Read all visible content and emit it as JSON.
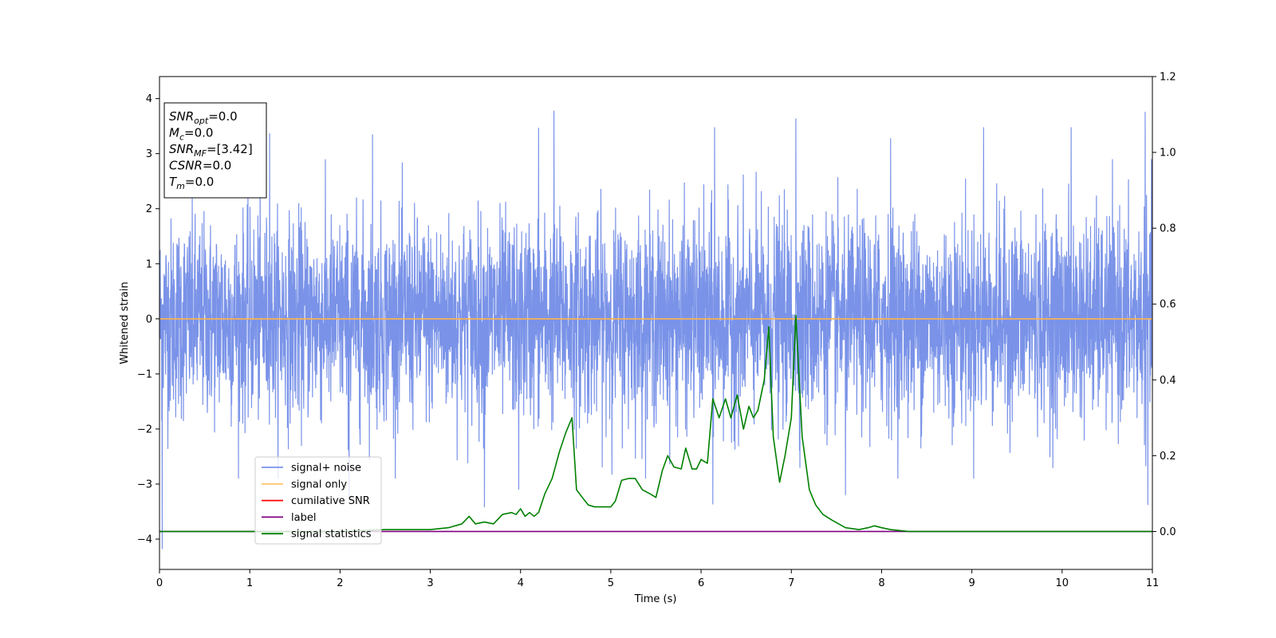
{
  "chart_data": {
    "type": "line",
    "xlabel": "Time (s)",
    "ylabel": "Whitened strain",
    "xlim": [
      0,
      11
    ],
    "ylim": [
      -4.55,
      4.4
    ],
    "y2lim": [
      -0.1,
      1.2
    ],
    "x_ticks": [
      "0",
      "1",
      "2",
      "3",
      "4",
      "5",
      "6",
      "7",
      "8",
      "9",
      "10",
      "11"
    ],
    "y_ticks": [
      "4",
      "3",
      "2",
      "1",
      "0",
      "−1",
      "−2",
      "−3",
      "−4"
    ],
    "y2_ticks": [
      "1.2",
      "1.0",
      "0.8",
      "0.6",
      "0.4",
      "0.2",
      "0.0"
    ],
    "grid": false,
    "legend_position": "lower-left",
    "info_box": [
      {
        "main": "SNR",
        "sub": "opt",
        "value": "=0.0"
      },
      {
        "main": "M",
        "sub": "c",
        "value": "=0.0"
      },
      {
        "main": "SNR",
        "sub": "MF",
        "value": "=[3.42]"
      },
      {
        "main": "CSNR",
        "sub": "",
        "value": "=0.0"
      },
      {
        "main": "T",
        "sub": "m",
        "value": "=0.0"
      }
    ],
    "series": [
      {
        "name": "signal+ noise",
        "color": "#6b87e6",
        "axis": "left",
        "style": "noise",
        "std": 0.9,
        "x_range": [
          0,
          11
        ],
        "peaks": [
          {
            "x": 4.37,
            "y": 3.78
          },
          {
            "x": 10.92,
            "y": 3.76
          },
          {
            "x": 7.05,
            "y": 3.64
          },
          {
            "x": 1.22,
            "y": 3.37
          },
          {
            "x": 2.36,
            "y": 3.35
          },
          {
            "x": 4.2,
            "y": 3.47
          },
          {
            "x": 6.15,
            "y": 3.48
          },
          {
            "x": 9.13,
            "y": 3.48
          },
          {
            "x": 10.1,
            "y": 3.48
          },
          {
            "x": 8.1,
            "y": 3.28
          },
          {
            "x": 0.03,
            "y": -4.18
          },
          {
            "x": 3.6,
            "y": -3.42
          },
          {
            "x": 6.13,
            "y": -3.37
          },
          {
            "x": 10.95,
            "y": -3.38
          },
          {
            "x": 2.1,
            "y": -3.25
          },
          {
            "x": 7.6,
            "y": -3.2
          },
          {
            "x": 3.98,
            "y": -3.1
          }
        ]
      },
      {
        "name": "signal only",
        "color": "#ffb347",
        "axis": "left",
        "x": [
          0,
          11
        ],
        "y": [
          0,
          0
        ]
      },
      {
        "name": "cumilative SNR",
        "color": "#ff0000",
        "axis": "right",
        "x": [],
        "y": []
      },
      {
        "name": "label",
        "color": "#800080",
        "axis": "right",
        "x": [
          0,
          11
        ],
        "y": [
          0,
          0
        ]
      },
      {
        "name": "signal statistics",
        "color": "#008000",
        "axis": "right",
        "x": [
          0,
          0.5,
          1,
          1.5,
          2,
          2.5,
          3,
          3.2,
          3.35,
          3.43,
          3.5,
          3.6,
          3.7,
          3.8,
          3.9,
          3.95,
          4.0,
          4.05,
          4.1,
          4.15,
          4.2,
          4.27,
          4.35,
          4.43,
          4.5,
          4.57,
          4.62,
          4.7,
          4.75,
          4.82,
          4.9,
          5.0,
          5.05,
          5.12,
          5.2,
          5.27,
          5.35,
          5.43,
          5.5,
          5.57,
          5.63,
          5.7,
          5.78,
          5.83,
          5.9,
          5.95,
          6.0,
          6.07,
          6.13,
          6.2,
          6.27,
          6.33,
          6.4,
          6.47,
          6.53,
          6.58,
          6.63,
          6.7,
          6.75,
          6.8,
          6.87,
          6.93,
          7.0,
          7.05,
          7.12,
          7.2,
          7.27,
          7.35,
          7.45,
          7.6,
          7.75,
          7.85,
          7.92,
          8.0,
          8.1,
          8.3,
          8.6,
          9.0,
          9.5,
          10.0,
          10.5,
          11.0
        ],
        "y": [
          0.0,
          0.0,
          0.0,
          0.0,
          0.0,
          0.005,
          0.005,
          0.01,
          0.02,
          0.04,
          0.02,
          0.025,
          0.02,
          0.045,
          0.05,
          0.045,
          0.06,
          0.04,
          0.05,
          0.04,
          0.05,
          0.1,
          0.14,
          0.21,
          0.26,
          0.3,
          0.11,
          0.085,
          0.07,
          0.065,
          0.065,
          0.065,
          0.08,
          0.135,
          0.14,
          0.14,
          0.11,
          0.1,
          0.09,
          0.16,
          0.2,
          0.17,
          0.165,
          0.22,
          0.165,
          0.165,
          0.19,
          0.18,
          0.35,
          0.3,
          0.35,
          0.3,
          0.36,
          0.27,
          0.33,
          0.3,
          0.32,
          0.4,
          0.54,
          0.25,
          0.13,
          0.2,
          0.3,
          0.57,
          0.25,
          0.11,
          0.07,
          0.045,
          0.03,
          0.01,
          0.005,
          0.01,
          0.015,
          0.01,
          0.005,
          0.0,
          0.0,
          0.0,
          0.0,
          0.0,
          0.0,
          0.0
        ]
      }
    ]
  }
}
